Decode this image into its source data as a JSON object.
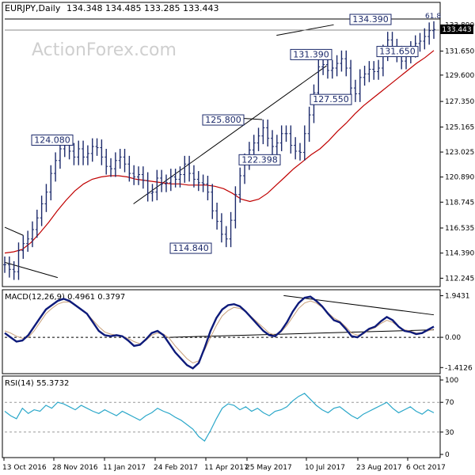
{
  "chart_data": {
    "type": "ohlc",
    "main": {
      "title": "EURJPY,Daily",
      "ohlc_readout": "134.348 134.485 133.285 133.443",
      "watermark": "ActionForex.com",
      "last_price": "133.443",
      "y_ticks": [
        "133.890",
        "131.650",
        "129.600",
        "127.350",
        "125.165",
        "123.025",
        "120.890",
        "118.745",
        "116.535",
        "114.390",
        "112.245"
      ],
      "y_range": [
        111.8,
        134.8
      ],
      "annotations": [
        {
          "label": "134.390",
          "value": 134.39
        },
        {
          "label": "131.390",
          "value": 131.39
        },
        {
          "label": "131.650",
          "value": 131.65
        },
        {
          "label": "127.550",
          "value": 127.55
        },
        {
          "label": "125.800",
          "value": 125.8
        },
        {
          "label": "124.080",
          "value": 124.08
        },
        {
          "label": "122.398",
          "value": 122.398
        },
        {
          "label": "114.840",
          "value": 114.84
        }
      ],
      "fib_label": "61.8",
      "price_series": [
        113.4,
        113.0,
        112.8,
        114.6,
        115.2,
        115.6,
        116.4,
        117.4,
        118.6,
        119.6,
        121.2,
        122.3,
        123.3,
        123.6,
        123.1,
        122.6,
        123.3,
        122.6,
        122.9,
        123.5,
        123.4,
        122.6,
        121.8,
        121.6,
        122.3,
        122.6,
        122.0,
        121.2,
        120.9,
        121.1,
        120.6,
        119.5,
        119.6,
        120.8,
        120.3,
        120.4,
        120.9,
        120.7,
        121.1,
        122.0,
        121.2,
        120.7,
        120.4,
        120.3,
        119.6,
        118.0,
        117.1,
        116.0,
        115.6,
        117.2,
        119.4,
        121.0,
        122.2,
        123.2,
        123.8,
        124.4,
        125.1,
        124.2,
        123.5,
        123.8,
        124.6,
        124.6,
        123.6,
        123.1,
        123.0,
        124.6,
        126.2,
        128.1,
        130.3,
        130.5,
        130.0,
        130.2,
        130.6,
        131.0,
        130.2,
        128.5,
        128.0,
        129.4,
        129.7,
        130.1,
        129.9,
        130.2,
        131.5,
        132.6,
        132.0,
        131.4,
        130.8,
        131.3,
        131.8,
        132.3,
        132.5,
        132.9,
        133.4,
        133.5
      ],
      "ma_series": [
        114.4,
        114.5,
        114.7,
        115.3,
        116.1,
        117.0,
        118.0,
        118.9,
        119.7,
        120.3,
        120.7,
        120.9,
        121.0,
        121.0,
        120.9,
        120.7,
        120.6,
        120.5,
        120.4,
        120.3,
        120.3,
        120.2,
        120.2,
        120.2,
        120.1,
        119.9,
        119.5,
        119.0,
        118.8,
        119.0,
        119.5,
        120.2,
        120.9,
        121.6,
        122.2,
        122.8,
        123.3,
        124.0,
        124.8,
        125.5,
        126.3,
        127.0,
        127.6,
        128.2,
        128.8,
        129.4,
        130.0,
        130.6,
        131.1,
        131.7
      ],
      "trendlines": [
        {
          "from": [
            0,
            113.6
          ],
          "to": [
            37,
            112.3
          ]
        },
        {
          "from": [
            0,
            116.6
          ],
          "to": [
            13,
            115.9
          ]
        },
        {
          "from": [
            90,
            118.6
          ],
          "to": [
            225,
            130.4
          ]
        },
        {
          "from": [
            190,
            133.0
          ],
          "to": [
            230,
            133.9
          ]
        },
        {
          "from": [
            140,
            126.1
          ],
          "to": [
            180,
            125.8
          ]
        }
      ]
    },
    "macd": {
      "label": "MACD(12,26,9) 0.4961 0.3797",
      "y_ticks": [
        "1.9431",
        "0.00",
        "-1.4126"
      ],
      "y_range": [
        -1.55,
        2.0
      ],
      "macd_series": [
        0.2,
        0.0,
        -0.2,
        -0.15,
        0.1,
        0.5,
        0.9,
        1.3,
        1.5,
        1.7,
        1.8,
        1.7,
        1.5,
        1.3,
        1.1,
        0.7,
        0.3,
        0.1,
        0.05,
        0.1,
        0.05,
        -0.15,
        -0.4,
        -0.35,
        -0.1,
        0.2,
        0.3,
        0.1,
        -0.3,
        -0.7,
        -1.0,
        -1.3,
        -1.45,
        -1.2,
        -0.5,
        0.3,
        0.9,
        1.3,
        1.5,
        1.55,
        1.45,
        1.2,
        0.9,
        0.6,
        0.3,
        0.1,
        0.05,
        0.3,
        0.7,
        1.2,
        1.6,
        1.85,
        1.9,
        1.7,
        1.45,
        1.1,
        0.8,
        0.7,
        0.4,
        0.05,
        0.0,
        0.2,
        0.4,
        0.5,
        0.75,
        0.95,
        0.8,
        0.5,
        0.3,
        0.25,
        0.15,
        0.2,
        0.35,
        0.5
      ],
      "signal_series": [
        0.3,
        0.2,
        0.05,
        -0.05,
        0.0,
        0.3,
        0.7,
        1.1,
        1.35,
        1.55,
        1.65,
        1.65,
        1.5,
        1.3,
        1.1,
        0.8,
        0.5,
        0.25,
        0.15,
        0.1,
        0.05,
        -0.05,
        -0.2,
        -0.3,
        -0.15,
        0.1,
        0.2,
        0.15,
        -0.05,
        -0.4,
        -0.7,
        -1.0,
        -1.2,
        -1.1,
        -0.6,
        0.0,
        0.55,
        1.0,
        1.25,
        1.4,
        1.35,
        1.2,
        0.95,
        0.7,
        0.45,
        0.2,
        0.1,
        0.25,
        0.55,
        0.95,
        1.35,
        1.6,
        1.7,
        1.6,
        1.4,
        1.15,
        0.9,
        0.75,
        0.5,
        0.2,
        0.1,
        0.15,
        0.35,
        0.45,
        0.65,
        0.8,
        0.7,
        0.5,
        0.35,
        0.3,
        0.2,
        0.22,
        0.3,
        0.38
      ],
      "trendlines": [
        {
          "from": [
            195,
            1.95
          ],
          "to": [
            300,
            1.05
          ]
        },
        {
          "from": [
            115,
            0.0
          ],
          "to": [
            300,
            0.35
          ]
        }
      ]
    },
    "rsi": {
      "label": "RSI(14) 55.3732",
      "y_ticks": [
        "100",
        "70",
        "30",
        "0"
      ],
      "y_range": [
        0,
        100
      ],
      "levels": [
        70,
        30
      ],
      "series": [
        58,
        52,
        48,
        62,
        55,
        60,
        58,
        66,
        62,
        70,
        68,
        64,
        60,
        66,
        62,
        58,
        55,
        60,
        56,
        52,
        58,
        54,
        50,
        46,
        52,
        56,
        62,
        58,
        55,
        50,
        46,
        40,
        34,
        24,
        18,
        32,
        48,
        62,
        68,
        66,
        60,
        64,
        58,
        62,
        56,
        52,
        58,
        60,
        64,
        72,
        78,
        82,
        74,
        66,
        60,
        56,
        62,
        64,
        58,
        52,
        48,
        54,
        58,
        62,
        66,
        70,
        62,
        56,
        60,
        64,
        58,
        54,
        60,
        56
      ]
    },
    "x_labels": [
      "13 Oct 2016",
      "28 Nov 2016",
      "11 Jan 2017",
      "24 Feb 2017",
      "11 Apr 2017",
      "25 May 2017",
      "10 Jul 2017",
      "23 Aug 2017",
      "6 Oct 2017"
    ]
  }
}
